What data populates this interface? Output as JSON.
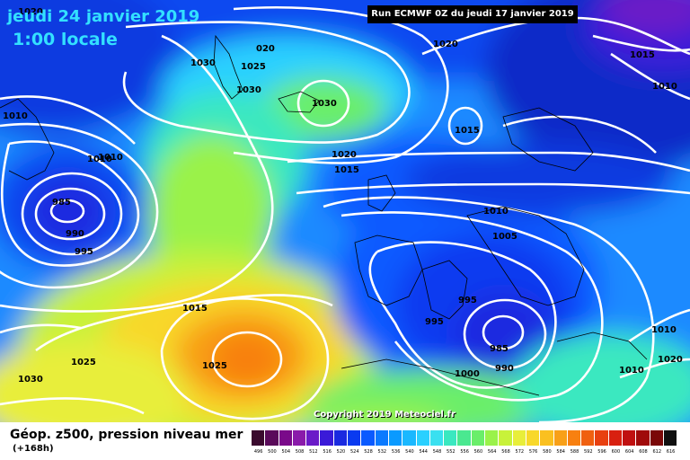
{
  "title": {
    "date": "jeudi 24 janvier 2019",
    "time": "1:00 locale"
  },
  "run_label": "Run ECMWF 0Z du jeudi 17 janvier 2019",
  "copyright": "Copyright 2019 Meteociel.fr",
  "legend": {
    "title": "Géop. z500, pression niveau mer",
    "subtitle": "(+168h)",
    "ticks": [
      "496",
      "500",
      "504",
      "508",
      "512",
      "516",
      "520",
      "524",
      "528",
      "532",
      "536",
      "540",
      "544",
      "548",
      "552",
      "556",
      "560",
      "564",
      "568",
      "572",
      "576",
      "580",
      "584",
      "588",
      "592",
      "596",
      "600",
      "604",
      "608",
      "612",
      "616"
    ],
    "colors": [
      "#3a0a2e",
      "#5a0a5a",
      "#7a0a8a",
      "#8a1aaa",
      "#6a1ac8",
      "#3a1ad8",
      "#1a2ae0",
      "#0a3af0",
      "#0a5aff",
      "#0a7aff",
      "#0a9aff",
      "#1ab8ff",
      "#2ad0ff",
      "#3ae0f0",
      "#3ae8c0",
      "#4ae890",
      "#6aee6a",
      "#9af24a",
      "#c8f23a",
      "#e8ee3a",
      "#f8d82a",
      "#fac020",
      "#f8a018",
      "#f88010",
      "#f06010",
      "#e84010",
      "#d82010",
      "#c01010",
      "#a00a0a",
      "#7a0808",
      "#101010"
    ]
  },
  "isobar_labels": [
    {
      "text": "1020"
    },
    {
      "text": "1010"
    },
    {
      "text": "1030"
    },
    {
      "text": "020"
    },
    {
      "text": "1025"
    },
    {
      "text": "1030"
    },
    {
      "text": "1020"
    },
    {
      "text": "1030"
    },
    {
      "text": "1015"
    },
    {
      "text": "1015"
    },
    {
      "text": "1010"
    },
    {
      "text": "1020"
    },
    {
      "text": "1015"
    },
    {
      "text": "1010"
    },
    {
      "text": "1010"
    },
    {
      "text": "985"
    },
    {
      "text": "990"
    },
    {
      "text": "995"
    },
    {
      "text": "1005"
    },
    {
      "text": "1015"
    },
    {
      "text": "995"
    },
    {
      "text": "995"
    },
    {
      "text": "985"
    },
    {
      "text": "990"
    },
    {
      "text": "1000"
    },
    {
      "text": "1025"
    },
    {
      "text": "1025"
    },
    {
      "text": "1030"
    },
    {
      "text": "1010"
    },
    {
      "text": "1020"
    },
    {
      "text": "1010"
    },
    {
      "text": "1010"
    }
  ],
  "pressure_systems": [
    {
      "name": "low-greenland",
      "label": "985 hPa"
    },
    {
      "name": "low-mediterranean",
      "label": "985 hPa"
    },
    {
      "name": "high-azores",
      "label": "1025 hPa"
    }
  ]
}
